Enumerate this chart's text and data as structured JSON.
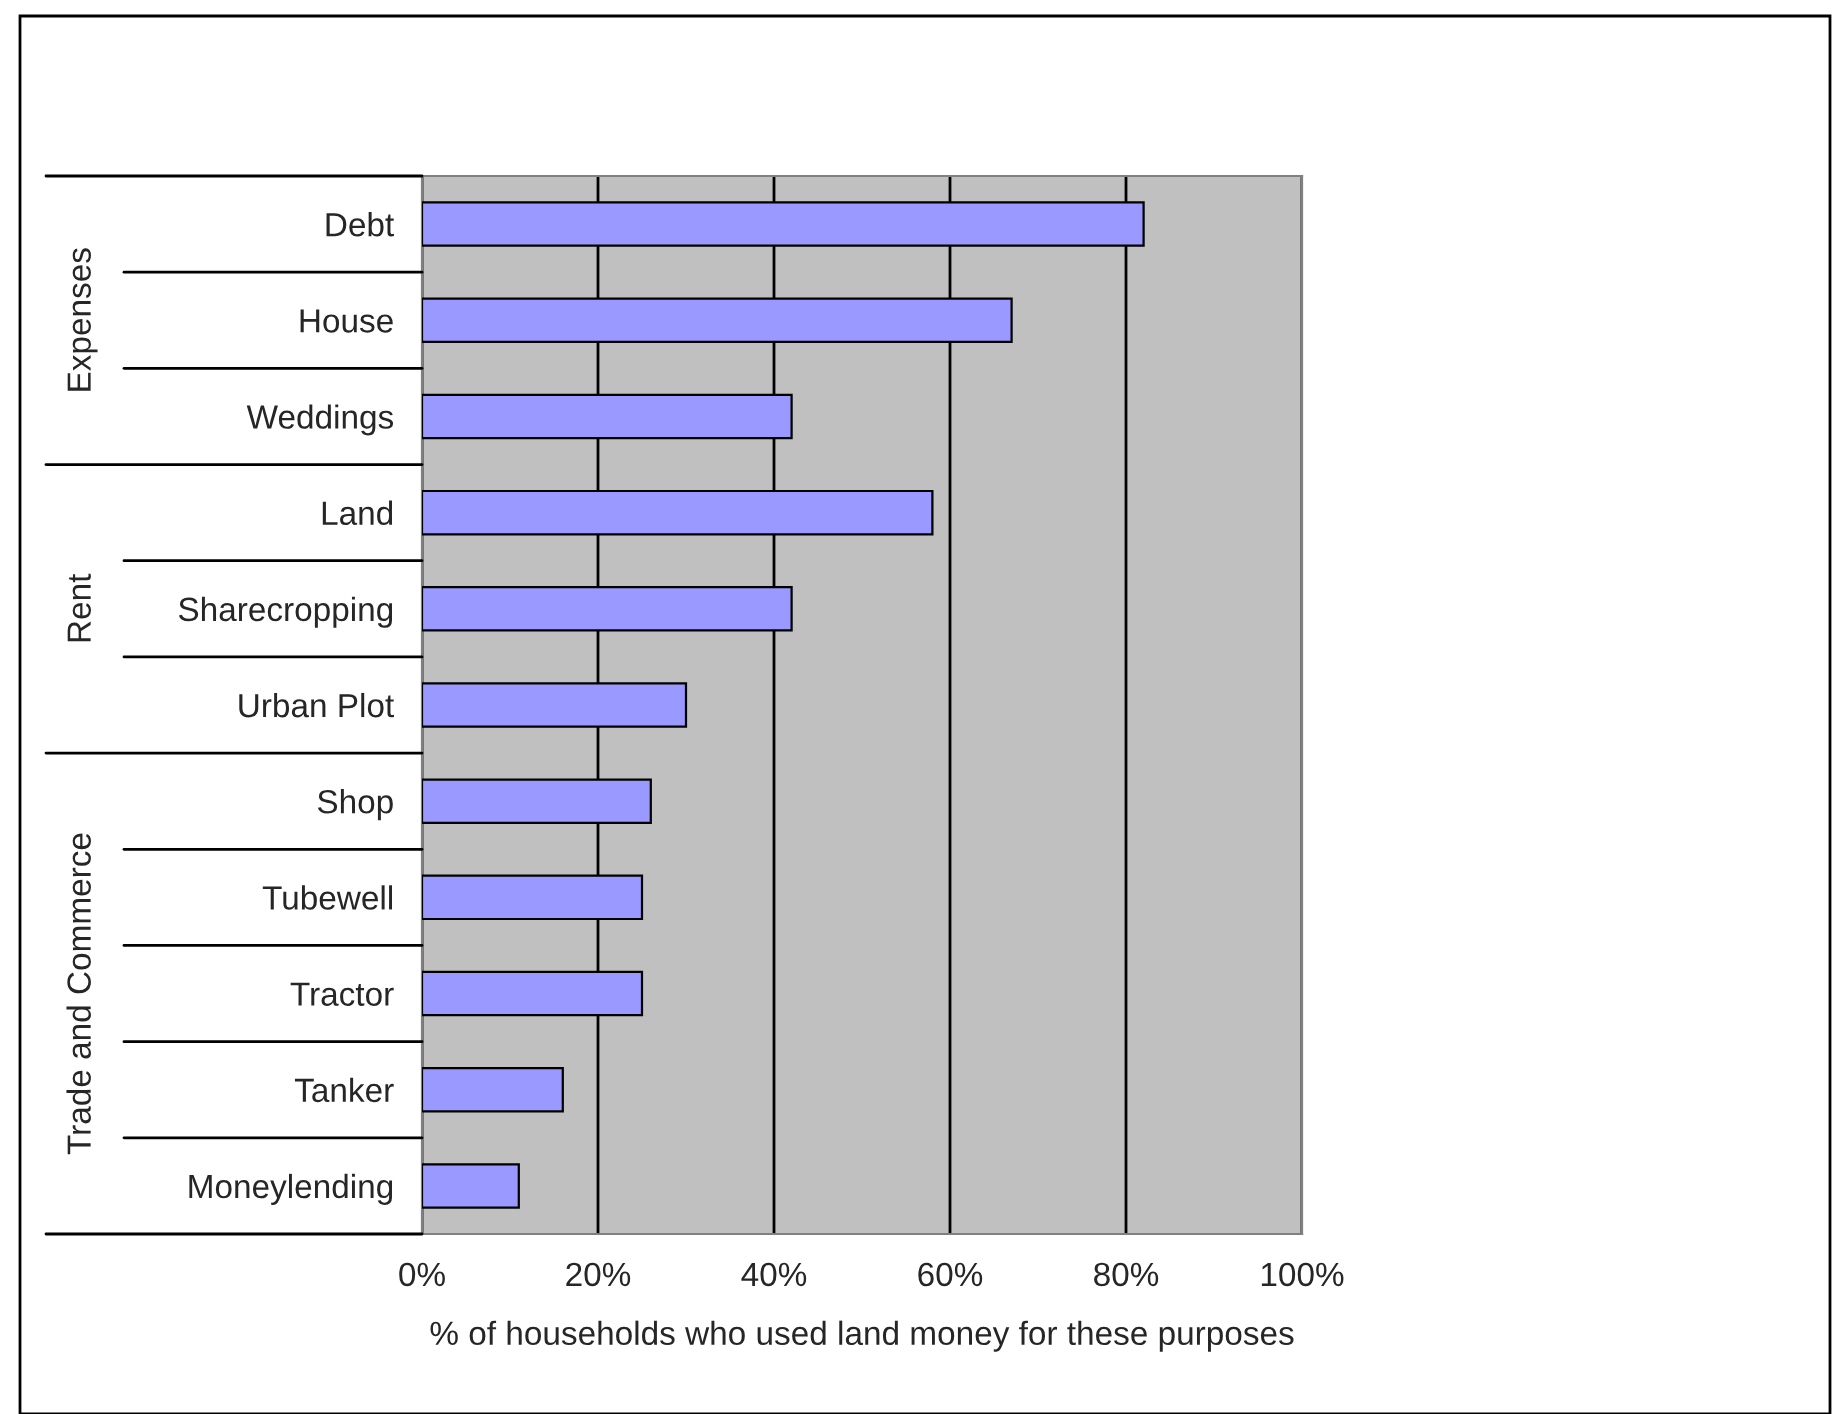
{
  "chart_data": {
    "type": "bar",
    "orientation": "horizontal",
    "xlabel": "% of households who used land money for these purposes",
    "categories": [
      "Debt",
      "House",
      "Weddings",
      "Land",
      "Sharecropping",
      "Urban Plot",
      "Shop",
      "Tubewell",
      "Tractor",
      "Tanker",
      "Moneylending"
    ],
    "values": [
      82,
      67,
      42,
      58,
      42,
      30,
      26,
      25,
      25,
      16,
      11
    ],
    "color": "#9999ff",
    "xlim": [
      0,
      100
    ],
    "xticks": [
      {
        "value": 0,
        "label": "0%"
      },
      {
        "value": 20,
        "label": "20%"
      },
      {
        "value": 40,
        "label": "40%"
      },
      {
        "value": 60,
        "label": "60%"
      },
      {
        "value": 80,
        "label": "80%"
      },
      {
        "value": 100,
        "label": "100%"
      }
    ],
    "grid": "x",
    "legend": false,
    "annotations": [
      "Expenses",
      "Rent",
      "Trade and Commerce"
    ]
  }
}
